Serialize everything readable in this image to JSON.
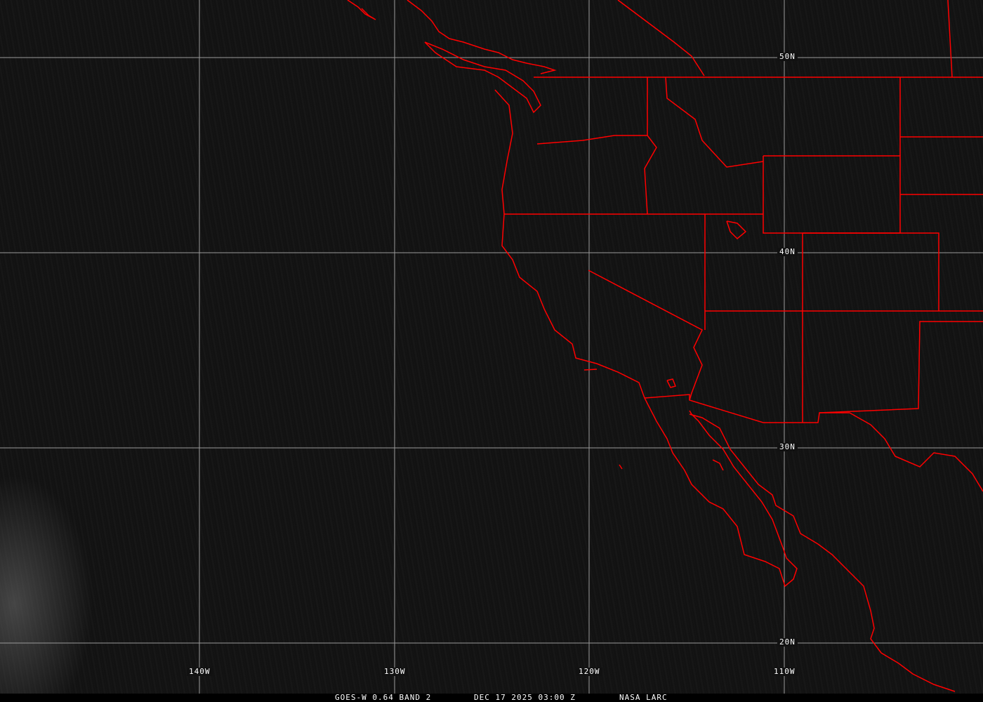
{
  "map": {
    "grid": {
      "latitudes": [
        "50N",
        "40N",
        "30N",
        "20N"
      ],
      "longitudes": [
        "140W",
        "130W",
        "120W",
        "110W"
      ]
    },
    "colors": {
      "background": "#111111",
      "borders": "#ff0000",
      "grid": "#9a9a9a"
    }
  },
  "caption": {
    "product": "GOES-W 0.64 BAND 2",
    "datetime": "DEC 17 2025 03:00 Z",
    "source": "NASA LARC"
  }
}
